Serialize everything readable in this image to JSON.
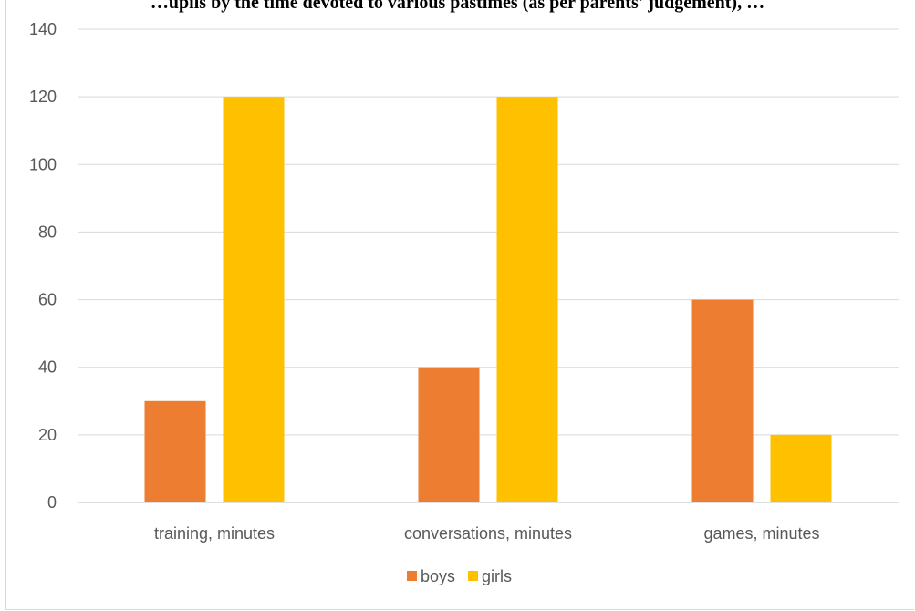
{
  "chart_data": {
    "type": "bar",
    "title": "…upils by the time devoted to various pastimes (as per parents' judgement), …",
    "categories": [
      "training, minutes",
      "conversations, minutes",
      "games, minutes"
    ],
    "series": [
      {
        "name": "boys",
        "values": [
          30,
          40,
          60
        ],
        "color": "#ed7d31"
      },
      {
        "name": "girls",
        "values": [
          120,
          120,
          20
        ],
        "color": "#ffc000"
      }
    ],
    "ylim": [
      0,
      140
    ],
    "yticks": [
      0,
      20,
      40,
      60,
      80,
      100,
      120,
      140
    ],
    "grid": true,
    "legend_position": "bottom"
  }
}
